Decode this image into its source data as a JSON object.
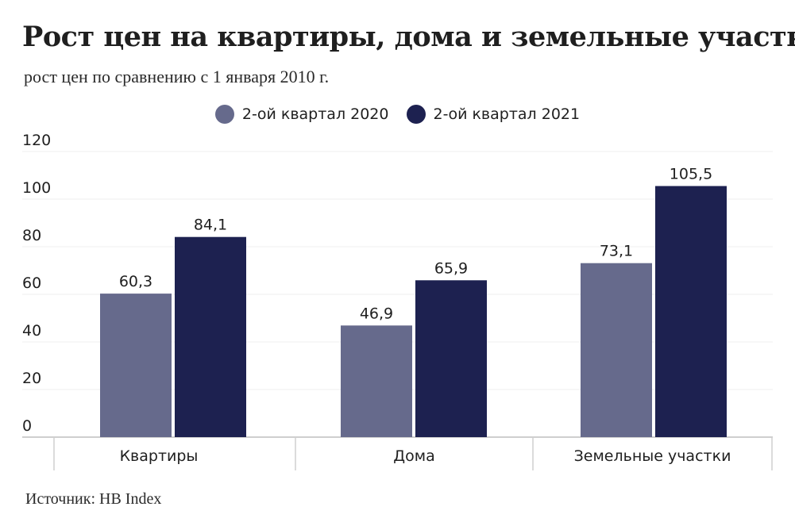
{
  "title": "Рост цен на квартиры, дома и земельные участки",
  "subtitle": "рост цен по сравнению с 1 января 2010 г.",
  "source": "Источник: НВ Index",
  "colors": {
    "series_2020": "#666a8c",
    "series_2021": "#1d2150",
    "grid": "#efefef",
    "axis": "#cfcfcf"
  },
  "chart_data": {
    "type": "bar",
    "title": "Рост цен на квартиры, дома и земельные участки",
    "subtitle": "рост цен по сравнению с 1 января 2010 г.",
    "categories": [
      "Квартиры",
      "Дома",
      "Земельные участки"
    ],
    "series": [
      {
        "name": "2-ой квартал 2020",
        "values": [
          60.3,
          46.9,
          73.1
        ],
        "labels": [
          "60,3",
          "46,9",
          "73,1"
        ]
      },
      {
        "name": "2-ой квартал 2021",
        "values": [
          84.1,
          65.9,
          105.5
        ],
        "labels": [
          "84,1",
          "65,9",
          "105,5"
        ]
      }
    ],
    "yticks": [
      0,
      20,
      40,
      60,
      80,
      100,
      120
    ],
    "ylim": [
      0,
      120
    ],
    "xlabel": "",
    "ylabel": "",
    "grid": true,
    "legend_position": "top-center"
  }
}
